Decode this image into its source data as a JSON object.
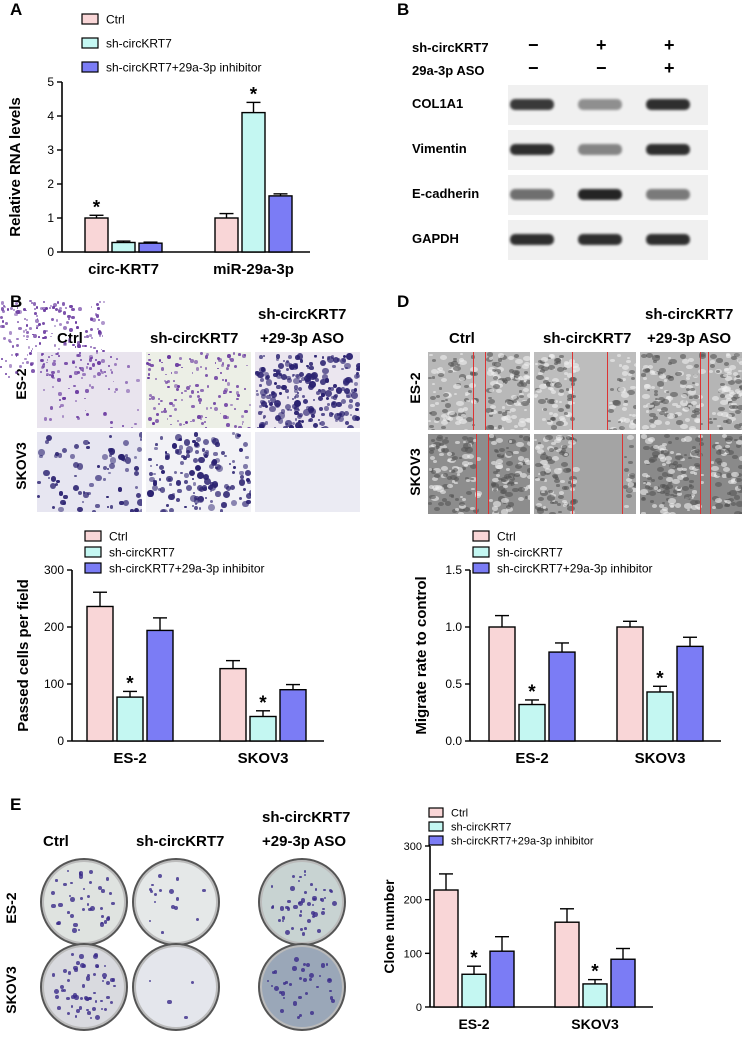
{
  "panels": {
    "A": "A",
    "B_top": "B",
    "B_mid": "B",
    "D": "D",
    "E": "E"
  },
  "colors": {
    "ctrl": "#f9d6d7",
    "sh": "#c4f7f2",
    "inh": "#7b7cf5",
    "axis": "#000000",
    "blot_bg": "#f0f0f0",
    "band": "#1a1a1a",
    "stain": "#3a2a8a"
  },
  "legend_labels": {
    "ctrl": "Ctrl",
    "sh": "sh-circKRT7",
    "inh": "sh-circKRT7+29a-3p inhibitor"
  },
  "significance_mark": "*",
  "blot": {
    "rows": [
      {
        "label": "sh-circKRT7",
        "signs": [
          "−",
          "+",
          "+"
        ]
      },
      {
        "label": "29a-3p ASO",
        "signs": [
          "−",
          "−",
          "+"
        ]
      }
    ],
    "proteins": [
      "COL1A1",
      "Vimentin",
      "E-cadherin",
      "GAPDH"
    ],
    "intensities": [
      [
        0.85,
        0.45,
        0.9
      ],
      [
        0.9,
        0.5,
        0.9
      ],
      [
        0.6,
        0.95,
        0.55
      ],
      [
        0.9,
        0.9,
        0.9
      ]
    ]
  },
  "image_panels": {
    "col_labels": [
      "Ctrl",
      "sh-circKRT7"
    ],
    "col3_label_line1": "sh-circKRT7",
    "col3_label_line2": "+29-3p ASO",
    "row_labels": [
      "ES-2",
      "SKOV3"
    ]
  },
  "chart_data": [
    {
      "id": "A",
      "type": "bar",
      "categories": [
        "circ-KRT7",
        "miR-29a-3p"
      ],
      "series": [
        {
          "name": "Ctrl",
          "values": [
            1.0,
            1.0
          ],
          "errors": [
            0.08,
            0.13
          ]
        },
        {
          "name": "sh-circKRT7",
          "values": [
            0.28,
            4.1
          ],
          "errors": [
            0.04,
            0.3
          ]
        },
        {
          "name": "sh-circKRT7+29a-3p inhibitor",
          "values": [
            0.26,
            1.65
          ],
          "errors": [
            0.03,
            0.06
          ]
        }
      ],
      "stars": [
        [
          true,
          false,
          false
        ],
        [
          false,
          true,
          false
        ]
      ],
      "ylabel": "Relative RNA levels",
      "ylim": [
        0,
        5
      ],
      "yticks": [
        0,
        1,
        2,
        3,
        4,
        5
      ]
    },
    {
      "id": "B",
      "type": "bar",
      "categories": [
        "ES-2",
        "SKOV3"
      ],
      "series": [
        {
          "name": "Ctrl",
          "values": [
            236,
            127
          ],
          "errors": [
            25,
            14
          ]
        },
        {
          "name": "sh-circKRT7",
          "values": [
            77,
            43
          ],
          "errors": [
            10,
            10
          ]
        },
        {
          "name": "sh-circKRT7+29a-3p inhibitor",
          "values": [
            194,
            90
          ],
          "errors": [
            22,
            9
          ]
        }
      ],
      "stars": [
        [
          false,
          true,
          false
        ],
        [
          false,
          true,
          false
        ]
      ],
      "ylabel": "Passed cells per field",
      "ylim": [
        0,
        300
      ],
      "yticks": [
        0,
        100,
        200,
        300
      ]
    },
    {
      "id": "D",
      "type": "bar",
      "categories": [
        "ES-2",
        "SKOV3"
      ],
      "series": [
        {
          "name": "Ctrl",
          "values": [
            1.0,
            1.0
          ],
          "errors": [
            0.1,
            0.05
          ]
        },
        {
          "name": "sh-circKRT7",
          "values": [
            0.32,
            0.43
          ],
          "errors": [
            0.04,
            0.05
          ]
        },
        {
          "name": "sh-circKRT7+29a-3p inhibitor",
          "values": [
            0.78,
            0.83
          ],
          "errors": [
            0.08,
            0.08
          ]
        }
      ],
      "stars": [
        [
          false,
          true,
          false
        ],
        [
          false,
          true,
          false
        ]
      ],
      "ylabel": "Migrate rate to control",
      "ylim": [
        0,
        1.5
      ],
      "yticks": [
        "0.0",
        "0.5",
        "1.0",
        "1.5"
      ]
    },
    {
      "id": "E",
      "type": "bar",
      "categories": [
        "ES-2",
        "SKOV3"
      ],
      "series": [
        {
          "name": "Ctrl",
          "values": [
            218,
            158
          ],
          "errors": [
            30,
            25
          ]
        },
        {
          "name": "sh-circKRT7",
          "values": [
            61,
            43
          ],
          "errors": [
            15,
            8
          ]
        },
        {
          "name": "sh-circKRT7+29a-3p inhibitor",
          "values": [
            104,
            89
          ],
          "errors": [
            27,
            20
          ]
        }
      ],
      "stars": [
        [
          false,
          true,
          false
        ],
        [
          false,
          true,
          false
        ]
      ],
      "ylabel": "Clone number",
      "ylim": [
        0,
        300
      ],
      "yticks": [
        0,
        100,
        200,
        300
      ]
    }
  ]
}
